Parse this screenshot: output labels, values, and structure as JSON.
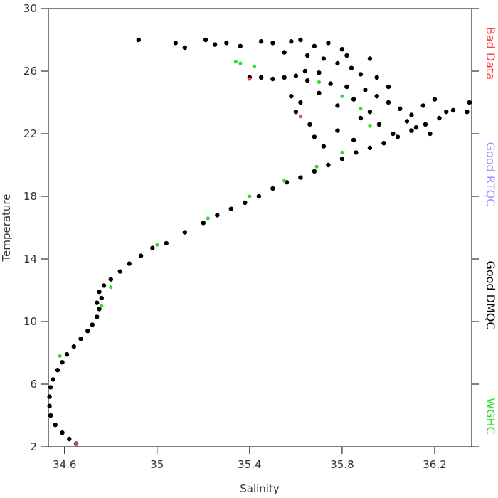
{
  "chart_data": {
    "type": "scatter",
    "x_label": "Salinity",
    "y_label": "Temperature",
    "xlim": [
      34.53,
      36.36
    ],
    "ylim": [
      2,
      30
    ],
    "xticks": [
      34.6,
      35.0,
      35.4,
      35.8,
      36.2
    ],
    "yticks": [
      2,
      6,
      10,
      14,
      18,
      22,
      26,
      30
    ],
    "series": [
      {
        "name": "Good DMQC",
        "color": "#000000",
        "x": [
          34.65,
          34.62,
          34.59,
          34.56,
          34.54,
          34.535,
          34.535,
          34.54,
          34.55,
          34.57,
          34.59,
          34.61,
          34.64,
          34.67,
          34.7,
          34.72,
          34.74,
          34.75,
          34.74,
          34.76,
          34.75,
          34.77,
          34.8,
          34.84,
          34.88,
          34.93,
          34.98,
          35.04,
          35.12,
          35.2,
          35.26,
          35.32,
          35.38,
          35.44,
          35.5,
          35.56,
          35.62,
          35.68,
          35.74,
          35.8,
          35.86,
          35.92,
          35.98,
          36.04,
          36.1,
          36.16,
          36.22,
          36.28,
          36.35,
          36.34,
          34.92,
          35.08,
          35.12,
          35.21,
          35.25,
          35.3,
          35.36,
          35.45,
          35.5,
          35.58,
          35.62,
          35.68,
          35.74,
          35.8,
          35.55,
          35.65,
          35.72,
          35.78,
          35.84,
          35.88,
          35.4,
          35.45,
          35.5,
          35.55,
          35.6,
          35.65,
          35.7,
          35.75,
          35.82,
          35.9,
          35.95,
          36.0,
          36.05,
          36.1,
          36.15,
          36.2,
          36.25,
          36.08,
          36.12,
          36.18,
          35.62,
          35.66,
          35.68,
          35.72,
          35.78,
          35.85,
          35.88,
          35.92,
          35.96,
          36.02,
          35.95,
          36.0,
          35.85,
          35.78,
          35.7,
          35.58,
          35.6,
          35.64,
          35.92,
          35.82
        ],
        "y": [
          2.2,
          2.5,
          2.9,
          3.4,
          4.0,
          4.6,
          5.2,
          5.8,
          6.3,
          6.9,
          7.4,
          7.9,
          8.4,
          8.9,
          9.4,
          9.8,
          10.3,
          10.8,
          11.2,
          11.5,
          11.9,
          12.3,
          12.7,
          13.2,
          13.7,
          14.2,
          14.7,
          15.0,
          15.7,
          16.3,
          16.8,
          17.2,
          17.6,
          18.0,
          18.5,
          18.9,
          19.2,
          19.6,
          20.0,
          20.4,
          20.8,
          21.1,
          21.4,
          21.8,
          22.2,
          22.6,
          23.0,
          23.5,
          24.0,
          23.4,
          28.0,
          27.8,
          27.5,
          28.0,
          27.7,
          27.8,
          27.6,
          27.9,
          27.8,
          27.9,
          28.0,
          27.6,
          27.8,
          27.4,
          27.2,
          27.0,
          26.8,
          26.5,
          26.2,
          25.8,
          25.6,
          25.6,
          25.5,
          25.6,
          25.7,
          25.4,
          25.9,
          25.2,
          25.0,
          24.8,
          24.4,
          24.0,
          23.6,
          23.2,
          23.8,
          24.2,
          23.4,
          22.8,
          22.4,
          22.0,
          24.0,
          22.6,
          21.8,
          21.2,
          22.2,
          21.6,
          23.0,
          23.4,
          22.6,
          22.0,
          25.6,
          25.0,
          24.2,
          23.8,
          24.6,
          24.4,
          23.4,
          26.0,
          26.8,
          27.0
        ]
      },
      {
        "name": "WGHC",
        "color": "#33dd33",
        "x": [
          34.58,
          34.76,
          34.8,
          35.0,
          35.22,
          35.4,
          35.55,
          35.69,
          35.8,
          35.92,
          35.88,
          35.8,
          35.7,
          35.34,
          35.36,
          35.42
        ],
        "y": [
          7.8,
          11.0,
          12.2,
          14.9,
          16.6,
          18.0,
          19.0,
          19.9,
          20.8,
          22.5,
          23.6,
          24.4,
          25.3,
          26.6,
          26.5,
          26.3
        ]
      },
      {
        "name": "Bad Data",
        "color": "#ff4040",
        "x": [
          34.65,
          35.4,
          35.62
        ],
        "y": [
          2.2,
          25.5,
          23.1
        ]
      },
      {
        "name": "Good RTQC",
        "color": "#9999ff",
        "x": [],
        "y": []
      }
    ]
  }
}
